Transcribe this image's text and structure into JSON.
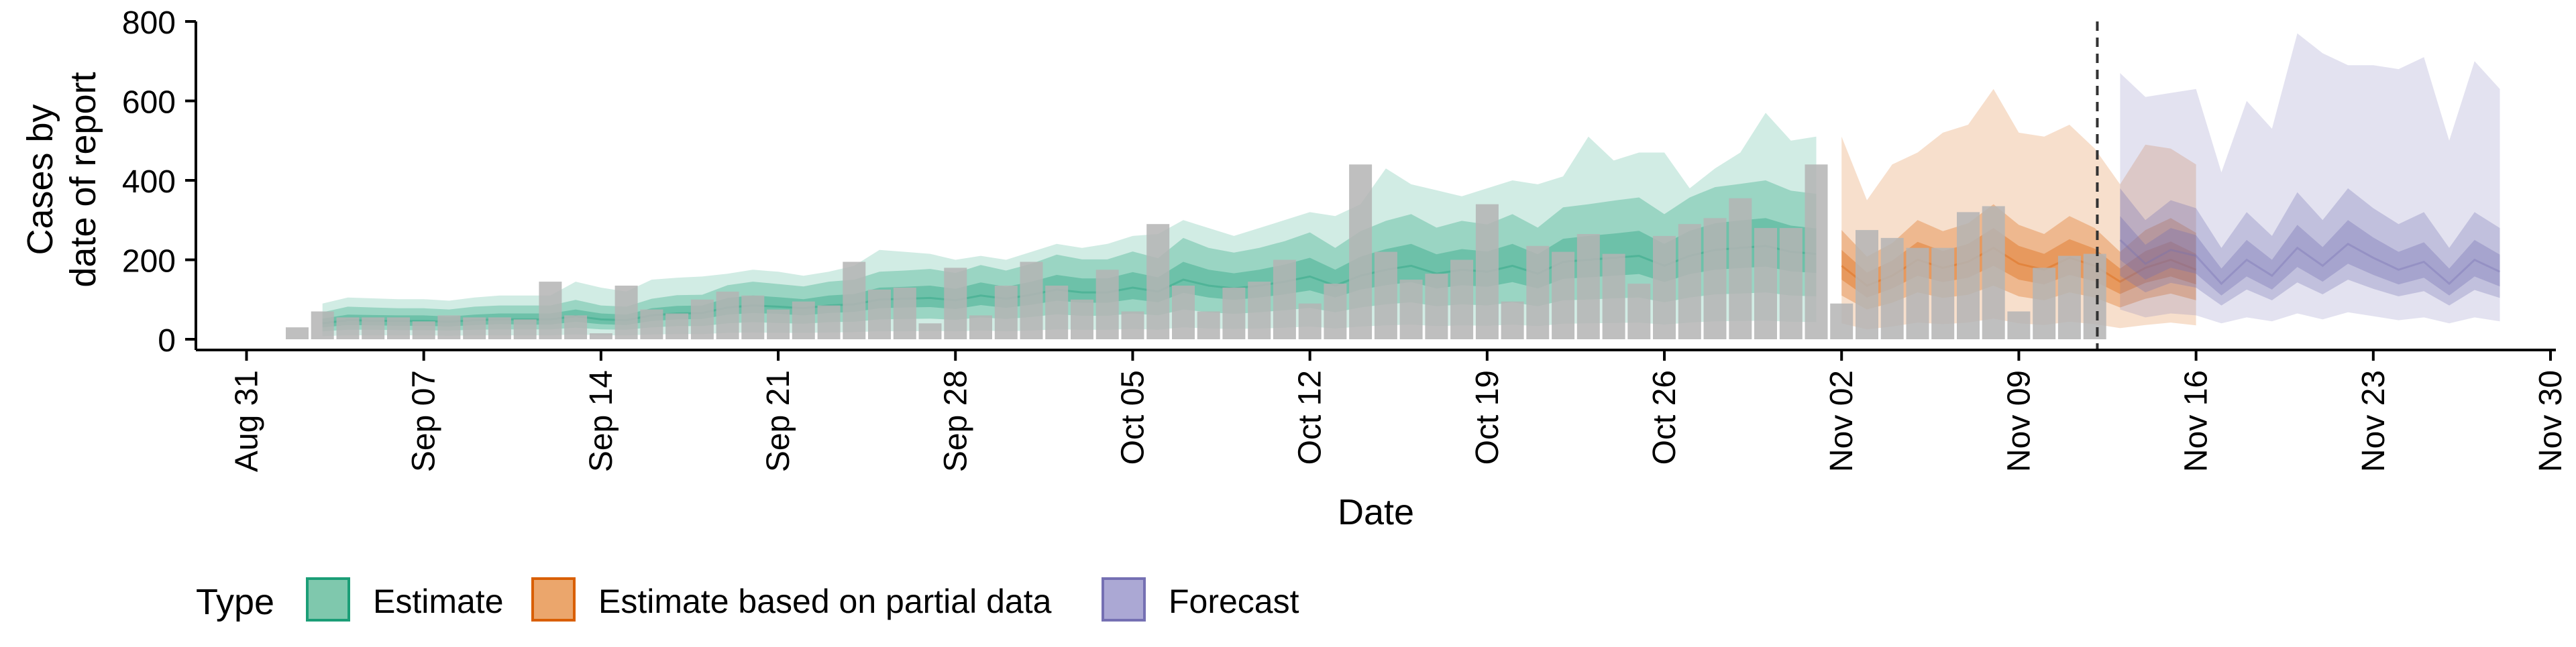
{
  "chart_data": {
    "type": "area",
    "xlabel": "Date",
    "ylabel": "Cases by date of report",
    "ylabel_lines": [
      "Cases by",
      "date of report"
    ],
    "xlim": [
      "2020-08-29",
      "2020-11-30"
    ],
    "ylim": [
      0,
      800
    ],
    "yticks": [
      0,
      200,
      400,
      600,
      800
    ],
    "xticks": [
      "2020-08-31",
      "2020-09-07",
      "2020-09-14",
      "2020-09-21",
      "2020-09-28",
      "2020-10-05",
      "2020-10-12",
      "2020-10-19",
      "2020-10-26",
      "2020-11-02",
      "2020-11-09",
      "2020-11-16",
      "2020-11-23",
      "2020-11-30"
    ],
    "xtick_labels": [
      "Aug 31",
      "Sep 07",
      "Sep 14",
      "Sep 21",
      "Sep 28",
      "Oct 05",
      "Oct 12",
      "Oct 19",
      "Oct 26",
      "Nov 02",
      "Nov 09",
      "Nov 16",
      "Nov 23",
      "Nov 30"
    ],
    "forecast_date": "2020-11-12",
    "grid": false,
    "legend": {
      "title": "Type",
      "position": "bottom-left",
      "items": [
        {
          "label": "Estimate",
          "fill": "#7fc8ad",
          "stroke": "#1b9e77"
        },
        {
          "label": "Estimate based on partial data",
          "fill": "#eba66c",
          "stroke": "#d95f02"
        },
        {
          "label": "Forecast",
          "fill": "#aba8d4",
          "stroke": "#7570b3"
        }
      ]
    },
    "colors": {
      "Estimate": "#1b9e77",
      "Estimate based on partial data": "#d95f02",
      "Forecast": "#7570b3",
      "bars": "#b4b4b4",
      "forecast_line": "#333333"
    },
    "bars": {
      "start_date": "2020-09-02",
      "values": [
        30,
        70,
        55,
        55,
        55,
        45,
        60,
        55,
        55,
        50,
        145,
        60,
        15,
        135,
        75,
        65,
        100,
        120,
        110,
        75,
        95,
        85,
        195,
        125,
        130,
        40,
        180,
        60,
        135,
        195,
        135,
        100,
        175,
        70,
        290,
        135,
        70,
        130,
        145,
        200,
        90,
        140,
        440,
        220,
        150,
        165,
        200,
        340,
        95,
        235,
        220,
        265,
        215,
        140,
        260,
        290,
        305,
        355,
        280,
        280,
        440,
        90,
        275,
        255,
        230,
        230,
        320,
        335,
        70,
        180,
        210,
        215
      ]
    },
    "series": [
      {
        "name": "Estimate",
        "start_date": "2020-09-03",
        "median": [
          40,
          48,
          47,
          46,
          46,
          44,
          48,
          50,
          50,
          50,
          58,
          50,
          48,
          60,
          65,
          66,
          80,
          85,
          82,
          78,
          85,
          88,
          100,
          102,
          104,
          98,
          110,
          102,
          112,
          125,
          118,
          118,
          130,
          120,
          150,
          135,
          128,
          135,
          145,
          158,
          135,
          160,
          175,
          185,
          165,
          175,
          170,
          185,
          165,
          195,
          200,
          205,
          210,
          185,
          210,
          225,
          230,
          235,
          220,
          215
        ],
        "inner": [
          [
            30,
            36,
            35,
            34,
            34,
            32,
            36,
            38,
            37,
            37,
            44,
            38,
            36,
            46,
            50,
            51,
            62,
            66,
            64,
            60,
            66,
            69,
            78,
            80,
            81,
            76,
            86,
            79,
            87,
            97,
            92,
            92,
            101,
            93,
            117,
            105,
            99,
            105,
            113,
            123,
            105,
            125,
            136,
            144,
            128,
            136,
            132,
            144,
            128,
            152,
            156,
            160,
            164,
            144,
            164,
            175,
            179,
            183,
            171,
            167
          ],
          [
            52,
            62,
            61,
            60,
            60,
            57,
            62,
            65,
            65,
            65,
            75,
            65,
            62,
            78,
            84,
            85,
            104,
            110,
            106,
            101,
            110,
            114,
            130,
            132,
            135,
            127,
            143,
            132,
            145,
            162,
            153,
            153,
            169,
            156,
            195,
            175,
            166,
            175,
            188,
            205,
            175,
            208,
            227,
            240,
            214,
            227,
            221,
            240,
            214,
            253,
            260,
            266,
            273,
            240,
            273,
            292,
            299,
            305,
            286,
            279
          ]
        ],
        "middle": [
          [
            20,
            24,
            24,
            23,
            23,
            22,
            24,
            25,
            25,
            25,
            29,
            25,
            24,
            30,
            33,
            33,
            40,
            43,
            41,
            39,
            43,
            44,
            50,
            51,
            52,
            49,
            55,
            51,
            56,
            63,
            59,
            59,
            65,
            60,
            75,
            68,
            64,
            68,
            73,
            79,
            68,
            80,
            88,
            93,
            83,
            88,
            85,
            93,
            83,
            98,
            100,
            103,
            105,
            93,
            105,
            113,
            115,
            118,
            110,
            108
          ],
          [
            68,
            82,
            80,
            78,
            78,
            75,
            82,
            85,
            85,
            85,
            99,
            85,
            82,
            102,
            111,
            112,
            136,
            145,
            139,
            133,
            145,
            150,
            170,
            173,
            177,
            167,
            187,
            173,
            190,
            213,
            201,
            201,
            221,
            204,
            255,
            230,
            218,
            230,
            247,
            269,
            230,
            272,
            298,
            315,
            281,
            298,
            289,
            315,
            281,
            332,
            340,
            349,
            357,
            315,
            357,
            383,
            391,
            400,
            374,
            366
          ]
        ],
        "outer": [
          [
            8,
            10,
            10,
            10,
            10,
            9,
            10,
            10,
            10,
            10,
            12,
            10,
            10,
            12,
            13,
            13,
            16,
            17,
            16,
            16,
            17,
            18,
            20,
            20,
            21,
            20,
            22,
            20,
            22,
            25,
            24,
            24,
            26,
            24,
            30,
            27,
            26,
            27,
            29,
            32,
            27,
            32,
            35,
            37,
            33,
            35,
            34,
            37,
            33,
            39,
            40,
            41,
            42,
            37,
            42,
            45,
            46,
            47,
            44,
            43
          ],
          [
            90,
            105,
            103,
            101,
            101,
            97,
            105,
            110,
            110,
            110,
            145,
            130,
            120,
            150,
            155,
            158,
            165,
            175,
            170,
            160,
            170,
            185,
            225,
            220,
            215,
            200,
            210,
            200,
            220,
            240,
            230,
            240,
            260,
            265,
            300,
            280,
            260,
            280,
            300,
            320,
            310,
            340,
            430,
            390,
            375,
            360,
            380,
            400,
            390,
            410,
            510,
            450,
            470,
            470,
            380,
            430,
            470,
            570,
            500,
            510
          ]
        ]
      },
      {
        "name": "Estimate based on partial data",
        "start_date": "2020-11-02",
        "median": [
          185,
          135,
          160,
          200,
          180,
          195,
          230,
          190,
          175,
          205,
          185,
          145,
          180,
          200,
          175
        ],
        "inner": [
          [
            150,
            105,
            128,
            160,
            144,
            155,
            185,
            150,
            138,
            162,
            146,
            114,
            142,
            158,
            138
          ],
          [
            225,
            168,
            198,
            245,
            222,
            240,
            280,
            235,
            215,
            252,
            228,
            178,
            222,
            246,
            215
          ]
        ],
        "middle": [
          [
            110,
            75,
            92,
            118,
            104,
            112,
            135,
            108,
            98,
            118,
            105,
            80,
            102,
            115,
            98
          ],
          [
            275,
            208,
            242,
            300,
            272,
            292,
            340,
            288,
            265,
            310,
            280,
            220,
            275,
            305,
            268
          ]
        ],
        "outer": [
          [
            40,
            25,
            32,
            42,
            38,
            42,
            52,
            40,
            36,
            44,
            38,
            28,
            36,
            42,
            35
          ],
          [
            510,
            350,
            440,
            470,
            520,
            540,
            630,
            520,
            510,
            540,
            480,
            390,
            490,
            480,
            440
          ]
        ]
      },
      {
        "name": "Forecast",
        "start_date": "2020-11-13",
        "median": [
          250,
          190,
          225,
          210,
          140,
          200,
          160,
          230,
          185,
          240,
          205,
          175,
          195,
          140,
          200,
          170
        ],
        "inner": [
          [
            200,
            150,
            180,
            165,
            110,
            158,
            125,
            182,
            145,
            190,
            162,
            138,
            155,
            110,
            158,
            133
          ],
          [
            310,
            238,
            280,
            262,
            178,
            250,
            200,
            288,
            232,
            300,
            256,
            220,
            244,
            178,
            250,
            213
          ]
        ],
        "middle": [
          [
            160,
            118,
            142,
            130,
            85,
            125,
            98,
            143,
            113,
            150,
            127,
            108,
            121,
            85,
            124,
            104
          ],
          [
            380,
            300,
            350,
            330,
            230,
            320,
            260,
            370,
            300,
            380,
            330,
            290,
            320,
            230,
            320,
            280
          ]
        ],
        "outer": [
          [
            75,
            55,
            65,
            60,
            40,
            55,
            45,
            65,
            50,
            68,
            58,
            48,
            55,
            40,
            55,
            45
          ],
          [
            670,
            610,
            620,
            630,
            420,
            600,
            530,
            770,
            720,
            690,
            690,
            680,
            710,
            500,
            700,
            630
          ]
        ]
      }
    ]
  }
}
